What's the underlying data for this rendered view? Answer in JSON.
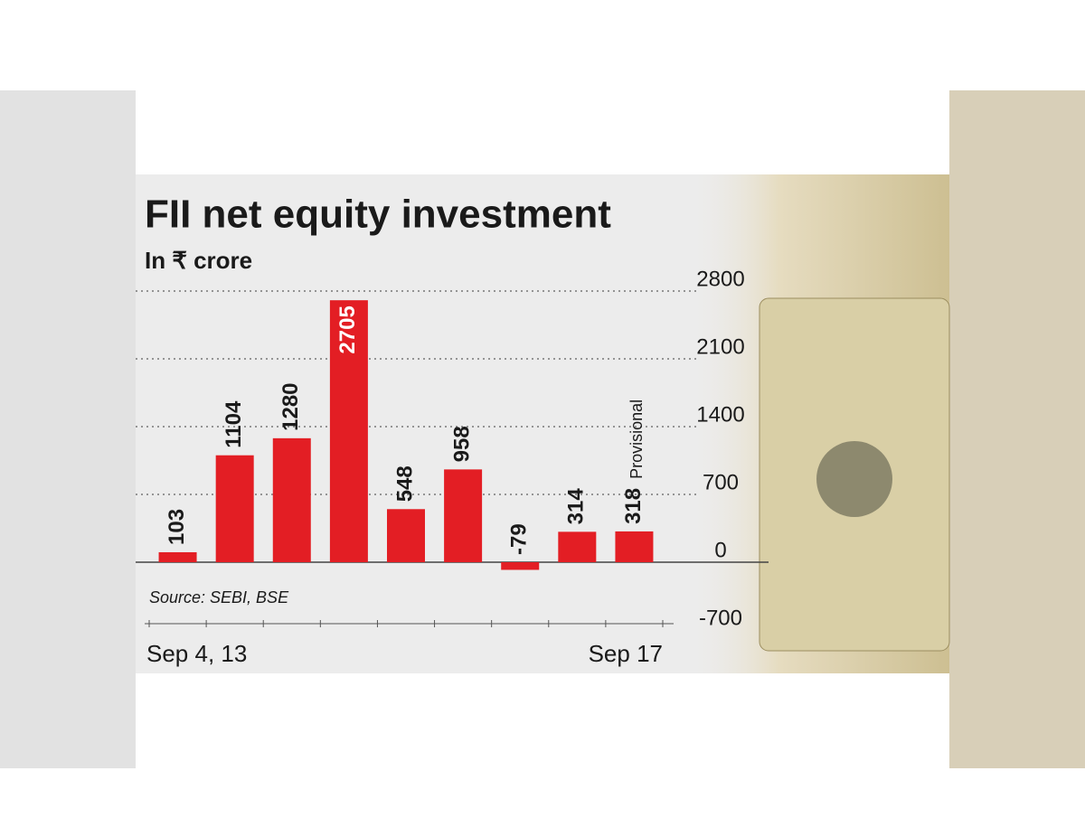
{
  "chart_data": {
    "type": "bar",
    "title": "FII net equity investment",
    "subtitle": "In ₹ crore",
    "source": "Source: SEBI, BSE",
    "annotation": "Provisional",
    "categories": [
      "Sep 4, 13",
      null,
      null,
      null,
      null,
      null,
      null,
      null,
      "Sep 17"
    ],
    "values": [
      103,
      1104,
      1280,
      2705,
      548,
      958,
      -79,
      314,
      318
    ],
    "color": "#e31e24",
    "ylim": [
      -700,
      2800
    ],
    "yticks": [
      2800,
      2100,
      1400,
      700,
      0,
      -700
    ],
    "grid": true
  }
}
